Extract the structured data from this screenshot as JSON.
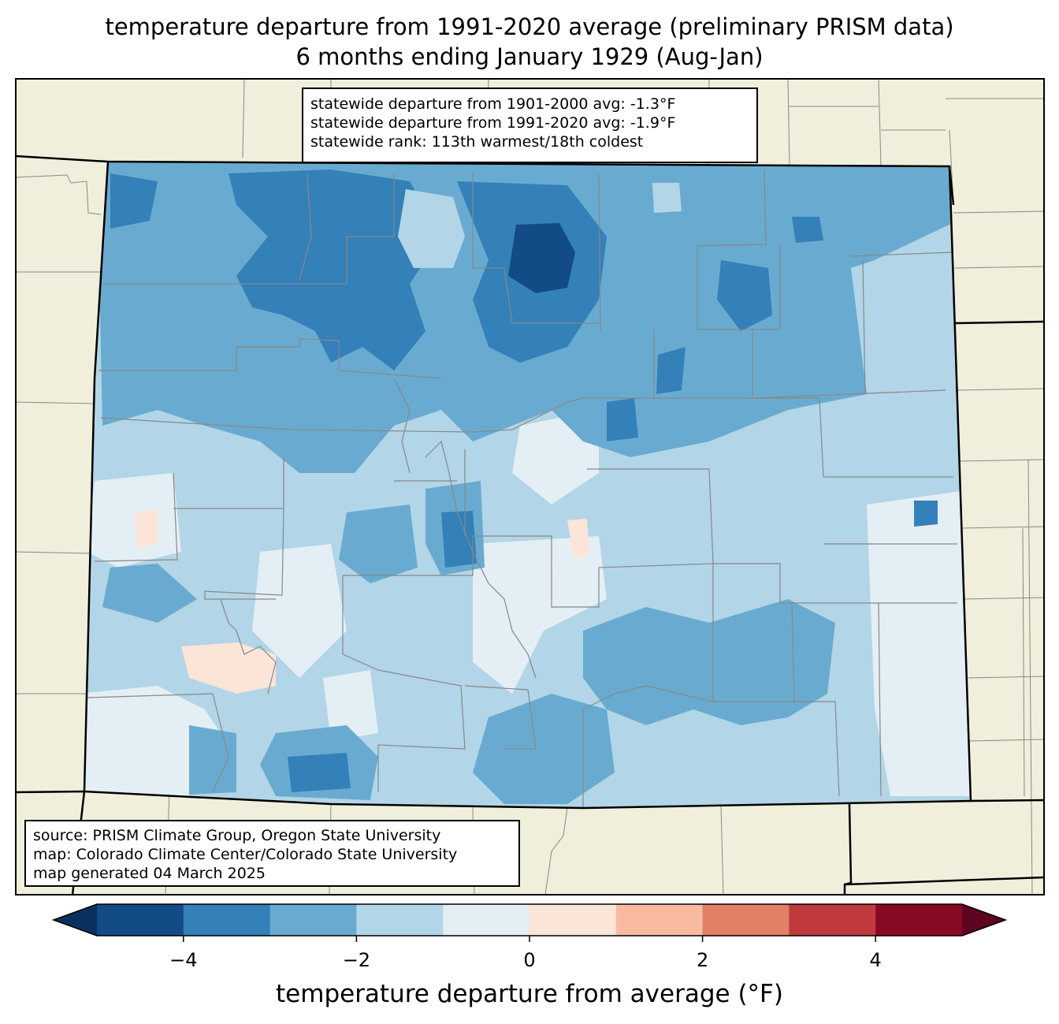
{
  "title": {
    "line1": "temperature departure from 1991-2020 average (preliminary PRISM data)",
    "line2": "6 months ending January 1929 (Aug-Jan)"
  },
  "stats": {
    "line1": "statewide departure from 1901-2000 avg: -1.3°F",
    "line2": "statewide departure from 1991-2020 avg: -1.9°F",
    "line3": "statewide rank: 113th warmest/18th coldest"
  },
  "source": {
    "line1": "source: PRISM Climate Group, Oregon State University",
    "line2": "map: Colorado Climate Center/Colorado State University",
    "line3": "map generated 04 March 2025"
  },
  "colorbar": {
    "label": "temperature departure from average (°F)",
    "ticks": [
      "−4",
      "−2",
      "0",
      "2",
      "4"
    ],
    "tick_values": [
      -4,
      -2,
      0,
      2,
      4
    ],
    "range": [
      -5,
      5
    ],
    "bins": [
      {
        "from": -5,
        "to": -4,
        "color": "#134b87"
      },
      {
        "from": -4,
        "to": -3,
        "color": "#3480b9"
      },
      {
        "from": -3,
        "to": -2,
        "color": "#69abd0"
      },
      {
        "from": -2,
        "to": -1,
        "color": "#b2d5e7"
      },
      {
        "from": -1,
        "to": 0,
        "color": "#e4eef5"
      },
      {
        "from": 0,
        "to": 1,
        "color": "#fbe5d8"
      },
      {
        "from": 1,
        "to": 2,
        "color": "#f8bba1"
      },
      {
        "from": 2,
        "to": 3,
        "color": "#e27f67"
      },
      {
        "from": 3,
        "to": 4,
        "color": "#c13a3d"
      },
      {
        "from": 4,
        "to": 5,
        "color": "#870a25"
      }
    ],
    "under_color": "#0a3060",
    "over_color": "#5e0420"
  },
  "map_colors": {
    "land_outside": "#efefdc",
    "county_lines": "#888888",
    "state_lines": "#000000"
  }
}
